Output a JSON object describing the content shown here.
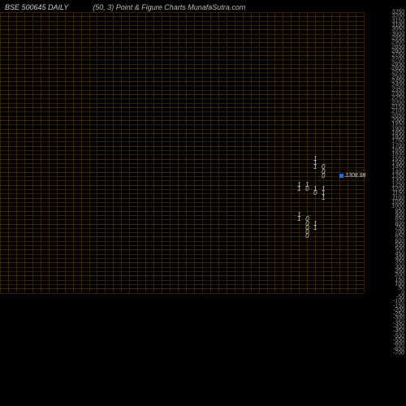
{
  "header": {
    "left_title": "BSE 500645 DAILY",
    "right_title": "(50,  3) Point & Figure    Charts MunafaSutra.com"
  },
  "chart": {
    "type": "point-and-figure",
    "background_color": "#000000",
    "grid_color": "#332200",
    "text_color": "#999999",
    "mark_color": "#cccccc",
    "marker_color": "#2266dd",
    "grid_rows": 70,
    "grid_cols": 45,
    "y_min": -700,
    "y_max": 3250,
    "y_step": 50,
    "y_labels": [
      3250,
      3200,
      3150,
      3100,
      3050,
      3000,
      2950,
      2900,
      2850,
      2800,
      2750,
      2700,
      2650,
      2600,
      2550,
      2500,
      2450,
      2400,
      2350,
      2300,
      2250,
      2200,
      2150,
      2100,
      2050,
      2000,
      1950,
      1900,
      1850,
      1800,
      1750,
      1700,
      1650,
      1600,
      1550,
      1500,
      1450,
      1400,
      1350,
      1300,
      1250,
      1200,
      1150,
      1100,
      1050,
      1000,
      950,
      900,
      850,
      800,
      750,
      700,
      650,
      600,
      550,
      500,
      450,
      400,
      350,
      300,
      250,
      200,
      150,
      100,
      50,
      0,
      -50,
      -100,
      -150,
      -200,
      -250,
      -300,
      -350,
      -400,
      -450,
      -500,
      -550,
      -600,
      -650,
      -700
    ],
    "marks": [
      {
        "col": 39,
        "row": 34,
        "sym": "1"
      },
      {
        "col": 39,
        "row": 35,
        "sym": "1"
      },
      {
        "col": 39,
        "row": 36,
        "sym": "1"
      },
      {
        "col": 40,
        "row": 36,
        "sym": "0"
      },
      {
        "col": 40,
        "row": 37,
        "sym": "0"
      },
      {
        "col": 40,
        "row": 38,
        "sym": "0"
      },
      {
        "col": 37,
        "row": 40,
        "sym": "1"
      },
      {
        "col": 38,
        "row": 40,
        "sym": "1"
      },
      {
        "col": 38,
        "row": 41,
        "sym": "0"
      },
      {
        "col": 37,
        "row": 41,
        "sym": "1"
      },
      {
        "col": 39,
        "row": 41,
        "sym": "1"
      },
      {
        "col": 39,
        "row": 42,
        "sym": "0"
      },
      {
        "col": 40,
        "row": 41,
        "sym": "1"
      },
      {
        "col": 40,
        "row": 42,
        "sym": "1"
      },
      {
        "col": 40,
        "row": 43,
        "sym": "1"
      },
      {
        "col": 37,
        "row": 47,
        "sym": "1"
      },
      {
        "col": 37,
        "row": 48,
        "sym": "1"
      },
      {
        "col": 38,
        "row": 48,
        "sym": "0"
      },
      {
        "col": 38,
        "row": 49,
        "sym": "0"
      },
      {
        "col": 38,
        "row": 50,
        "sym": "0"
      },
      {
        "col": 38,
        "row": 51,
        "sym": "0"
      },
      {
        "col": 38,
        "row": 52,
        "sym": "0"
      },
      {
        "col": 39,
        "row": 49,
        "sym": "1"
      },
      {
        "col": 39,
        "row": 50,
        "sym": "1"
      }
    ],
    "price_marker": {
      "value": "1308.98",
      "col": 42,
      "row": 38
    }
  }
}
